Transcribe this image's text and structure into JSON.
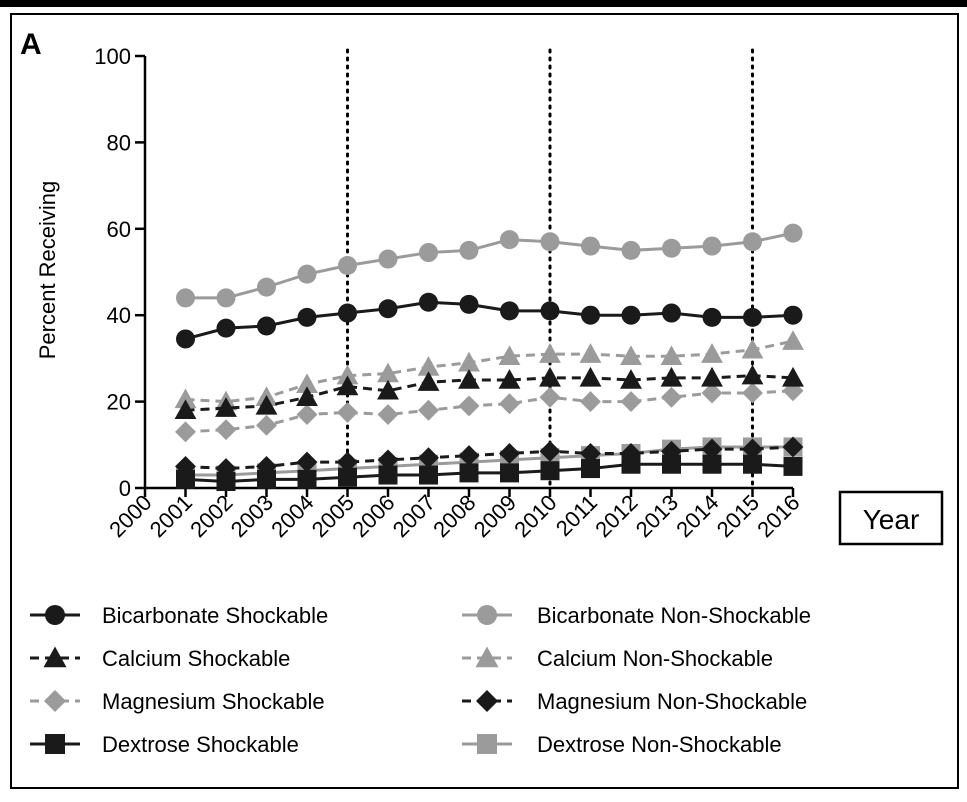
{
  "panel_label": "A",
  "chart_data": {
    "type": "line",
    "xlabel": "Year",
    "ylabel": "Percent  Receiving",
    "ylim": [
      0,
      100
    ],
    "yticks": [
      0,
      20,
      40,
      60,
      80,
      100
    ],
    "x": [
      2000,
      2001,
      2002,
      2003,
      2004,
      2005,
      2006,
      2007,
      2008,
      2009,
      2010,
      2011,
      2012,
      2013,
      2014,
      2015,
      2016
    ],
    "x_tick_labels": [
      "2000",
      "2001",
      "2002",
      "2003",
      "2004",
      "2005",
      "2006",
      "2007",
      "2008",
      "2009",
      "2010",
      "2011",
      "2012",
      "2013",
      "2014",
      "2015",
      "2016"
    ],
    "reference_lines_x": [
      2005,
      2010,
      2015
    ],
    "legend_position": "bottom",
    "series": [
      {
        "name": "Bicarbonate Shockable",
        "marker": "circle",
        "color": "#1a1a1a",
        "dash": "solid",
        "values": [
          null,
          34.5,
          37,
          37.5,
          39.5,
          40.5,
          41.5,
          43,
          42.5,
          41,
          41,
          40,
          40,
          40.5,
          39.5,
          39.5,
          40
        ]
      },
      {
        "name": "Bicarbonate Non-Shockable",
        "marker": "circle",
        "color": "#9b9b9b",
        "dash": "solid",
        "values": [
          null,
          44,
          44,
          46.5,
          49.5,
          51.5,
          53,
          54.5,
          55,
          57.5,
          57,
          56,
          55,
          55.5,
          56,
          57,
          59
        ]
      },
      {
        "name": "Calcium Shockable",
        "marker": "triangle",
        "color": "#1a1a1a",
        "dash": "dashed",
        "values": [
          null,
          18,
          18.5,
          19,
          21,
          23.5,
          22.5,
          24.5,
          25,
          25,
          25.5,
          25.5,
          25,
          25.5,
          25.5,
          26,
          25.5
        ]
      },
      {
        "name": "Calcium Non-Shockable",
        "marker": "triangle",
        "color": "#9b9b9b",
        "dash": "dashed",
        "values": [
          null,
          20.5,
          20,
          21,
          24,
          26,
          26.5,
          28,
          29,
          30.5,
          31,
          31,
          30.5,
          30.5,
          31,
          32,
          34
        ]
      },
      {
        "name": "Magnesium Shockable",
        "marker": "diamond",
        "color": "#9b9b9b",
        "dash": "dashed",
        "values": [
          null,
          13,
          13.5,
          14.5,
          17,
          17.5,
          17,
          18,
          19,
          19.5,
          21,
          20,
          20,
          21,
          22,
          22,
          22.5
        ]
      },
      {
        "name": "Magnesium Non-Shockable",
        "marker": "diamond",
        "color": "#1a1a1a",
        "dash": "dashed",
        "values": [
          null,
          5,
          4.5,
          5,
          6,
          6,
          6.5,
          7,
          7.5,
          8,
          8.5,
          8,
          8,
          8.5,
          9,
          9,
          9.5
        ]
      },
      {
        "name": "Dextrose Shockable",
        "marker": "square",
        "color": "#1a1a1a",
        "dash": "solid",
        "values": [
          null,
          2,
          1.5,
          2,
          2,
          2.5,
          3,
          3,
          3.5,
          3.5,
          4,
          4.5,
          5.5,
          5.5,
          5.5,
          5.5,
          5
        ]
      },
      {
        "name": "Dextrose Non-Shockable",
        "marker": "square",
        "color": "#9b9b9b",
        "dash": "solid",
        "values": [
          null,
          3,
          3,
          3.5,
          4,
          4.5,
          5,
          5.5,
          6,
          6.5,
          7,
          7.5,
          8,
          9,
          9.5,
          9.5,
          9.5
        ]
      }
    ]
  }
}
